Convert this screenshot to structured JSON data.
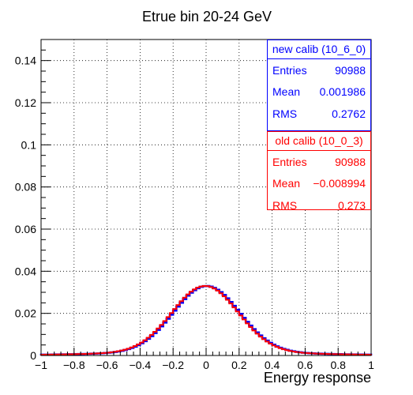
{
  "chart_data": {
    "type": "histogram",
    "title": "Etrue bin 20-24 GeV",
    "xlabel": "Energy response",
    "ylabel": "",
    "xlim": [
      -1,
      1
    ],
    "ylim": [
      0,
      0.15
    ],
    "x_ticks": [
      -1,
      -0.8,
      -0.6,
      -0.4,
      -0.2,
      0,
      0.2,
      0.4,
      0.6,
      0.8,
      1
    ],
    "x_tick_labels": [
      "−1",
      "−0.8",
      "−0.6",
      "−0.4",
      "−0.2",
      "0",
      "0.2",
      "0.4",
      "0.6",
      "0.8",
      "1"
    ],
    "y_ticks": [
      0,
      0.02,
      0.04,
      0.06,
      0.08,
      0.1,
      0.12,
      0.14
    ],
    "y_tick_labels": [
      "0",
      "0.02",
      "0.04",
      "0.06",
      "0.08",
      "0.1",
      "0.12",
      "0.14"
    ],
    "grid": true,
    "series": [
      {
        "name": "new calib (10_6_0)",
        "color": "#0000ff",
        "entries": "90988",
        "mean": "0.001986",
        "rms": "0.2762",
        "mu": 0.002,
        "sigma": 0.2
      },
      {
        "name": "old calib (10_0_3)",
        "color": "#ff0000",
        "entries": "90988",
        "mean": "−0.008994",
        "rms": "0.273",
        "mu": -0.006,
        "sigma": 0.2
      }
    ],
    "peak": 0.0315,
    "tail_level": 0.0015
  },
  "stats": {
    "new": {
      "header": "new calib (10_6_0)",
      "entries_label": "Entries",
      "entries": "90988",
      "mean_label": "Mean",
      "mean": "0.001986",
      "rms_label": "RMS",
      "rms": "0.2762"
    },
    "old": {
      "header": "old calib (10_0_3)",
      "entries_label": "Entries",
      "entries": "90988",
      "mean_label": "Mean",
      "mean": "−0.008994",
      "rms_label": "RMS",
      "rms": "0.273"
    }
  }
}
